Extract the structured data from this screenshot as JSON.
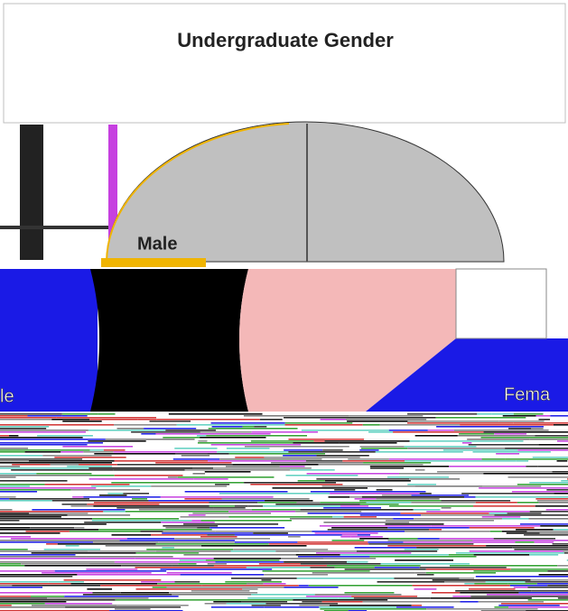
{
  "header": {
    "title": "Undergraduate Gender"
  },
  "labels": {
    "male": "Male",
    "left_fragment": "le",
    "right_fragment": "Fema"
  }
}
